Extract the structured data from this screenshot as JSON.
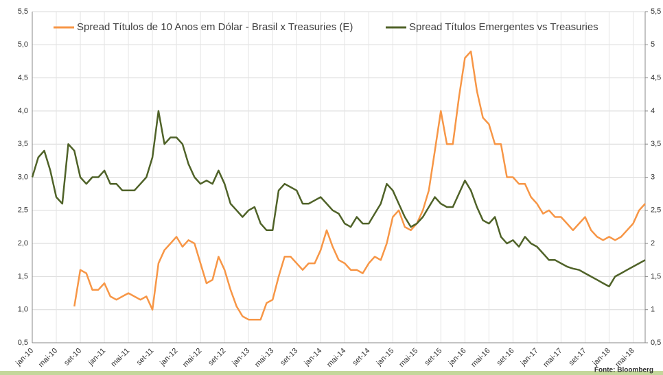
{
  "chart_data": {
    "type": "line",
    "categories": [
      "jan-10",
      null,
      null,
      null,
      "mai-10",
      null,
      null,
      null,
      "set-10",
      null,
      null,
      null,
      "jan-11",
      null,
      null,
      null,
      "mai-11",
      null,
      null,
      null,
      "set-11",
      null,
      null,
      null,
      "jan-12",
      null,
      null,
      null,
      "mai-12",
      null,
      null,
      null,
      "set-12",
      null,
      null,
      null,
      "jan-13",
      null,
      null,
      null,
      "mai-13",
      null,
      null,
      null,
      "set-13",
      null,
      null,
      null,
      "jan-14",
      null,
      null,
      null,
      "mai-14",
      null,
      null,
      null,
      "set-14",
      null,
      null,
      null,
      "jan-15",
      null,
      null,
      null,
      "mai-15",
      null,
      null,
      null,
      "set-15",
      null,
      null,
      null,
      "jan-16",
      null,
      null,
      null,
      "mai-16",
      null,
      null,
      null,
      "set-16",
      null,
      null,
      null,
      "jan-17",
      null,
      null,
      null,
      "mai-17",
      null,
      null,
      null,
      "set-17",
      null,
      null,
      null,
      "jan-18",
      null,
      null,
      null,
      "mai-18",
      null,
      null
    ],
    "series": [
      {
        "name": "Spread Títulos de 10 Anos em Dólar - Brasil x Treasuries (E)",
        "color": "#f79646",
        "values": [
          null,
          null,
          null,
          null,
          null,
          null,
          null,
          1.05,
          1.6,
          1.55,
          1.3,
          1.3,
          1.4,
          1.2,
          1.15,
          1.2,
          1.25,
          1.2,
          1.15,
          1.2,
          1.0,
          1.7,
          1.9,
          2.0,
          2.1,
          1.95,
          2.05,
          2.0,
          1.7,
          1.4,
          1.45,
          1.8,
          1.6,
          1.3,
          1.05,
          0.9,
          0.85,
          0.85,
          0.85,
          1.1,
          1.15,
          1.5,
          1.8,
          1.8,
          1.7,
          1.6,
          1.7,
          1.7,
          1.9,
          2.2,
          1.95,
          1.75,
          1.7,
          1.6,
          1.6,
          1.55,
          1.7,
          1.8,
          1.75,
          2.0,
          2.4,
          2.5,
          2.25,
          2.2,
          2.3,
          2.5,
          2.8,
          3.4,
          4.0,
          3.5,
          3.5,
          4.2,
          4.8,
          4.9,
          4.3,
          3.9,
          3.8,
          3.5,
          3.5,
          3.0,
          3.0,
          2.9,
          2.9,
          2.7,
          2.6,
          2.45,
          2.5,
          2.4,
          2.4,
          2.3,
          2.2,
          2.3,
          2.4,
          2.2,
          2.1,
          2.05,
          2.1,
          2.05,
          2.1,
          2.2,
          2.3,
          2.5,
          2.6
        ]
      },
      {
        "name": "Spread Títulos Emergentes vs Treasuries",
        "color": "#4f6228",
        "axis": "y2",
        "values": [
          3.0,
          3.3,
          3.4,
          3.1,
          2.7,
          2.6,
          3.5,
          3.4,
          3.0,
          2.9,
          3.0,
          3.0,
          3.1,
          2.9,
          2.9,
          2.8,
          2.8,
          2.8,
          2.9,
          3.0,
          3.3,
          4.0,
          3.5,
          3.6,
          3.6,
          3.5,
          3.2,
          3.0,
          2.9,
          2.95,
          2.9,
          3.1,
          2.9,
          2.6,
          2.5,
          2.4,
          2.5,
          2.55,
          2.3,
          2.2,
          2.2,
          2.8,
          2.9,
          2.85,
          2.8,
          2.6,
          2.6,
          2.65,
          2.7,
          2.6,
          2.5,
          2.45,
          2.3,
          2.25,
          2.4,
          2.3,
          2.3,
          2.45,
          2.6,
          2.9,
          2.8,
          2.6,
          2.4,
          2.25,
          2.3,
          2.4,
          2.55,
          2.7,
          2.6,
          2.55,
          2.55,
          2.75,
          2.95,
          2.8,
          2.55,
          2.35,
          2.3,
          2.4,
          2.1,
          2.0,
          2.05,
          1.95,
          2.1,
          2.0,
          1.95,
          1.85,
          1.75,
          1.75,
          1.7,
          1.65,
          1.62,
          1.6,
          1.55,
          1.5,
          1.45,
          1.4,
          1.35,
          1.5,
          1.55,
          1.6,
          1.65,
          1.7,
          1.75
        ]
      }
    ],
    "ylim": [
      0.5,
      5.5
    ],
    "yticks": [
      {
        "value": 0.5,
        "label": "0,5"
      },
      {
        "value": 1,
        "label": "1,0"
      },
      {
        "value": 1.5,
        "label": "1,5"
      },
      {
        "value": 2,
        "label": "2,0"
      },
      {
        "value": 2.5,
        "label": "2,5"
      },
      {
        "value": 3,
        "label": "3,0"
      },
      {
        "value": 3.5,
        "label": "3,5"
      },
      {
        "value": 4,
        "label": "4,0"
      },
      {
        "value": 4.5,
        "label": "4,5"
      },
      {
        "value": 5,
        "label": "5,0"
      },
      {
        "value": 5.5,
        "label": "5,5"
      }
    ],
    "y2lim": [
      0.5,
      5.5
    ],
    "y2ticks": [
      {
        "value": 0.5,
        "label": "0,5"
      },
      1,
      {
        "value": 1.5,
        "label": "1,5"
      },
      2,
      {
        "value": 2.5,
        "label": "2,5"
      },
      3,
      {
        "value": 3.5,
        "label": "3,5"
      },
      4,
      {
        "value": 4.5,
        "label": "4,5"
      },
      5,
      {
        "value": 5.5,
        "label": "5,5"
      }
    ],
    "grid": true,
    "legend": "top",
    "source": "Fonte: Bloomberg"
  }
}
